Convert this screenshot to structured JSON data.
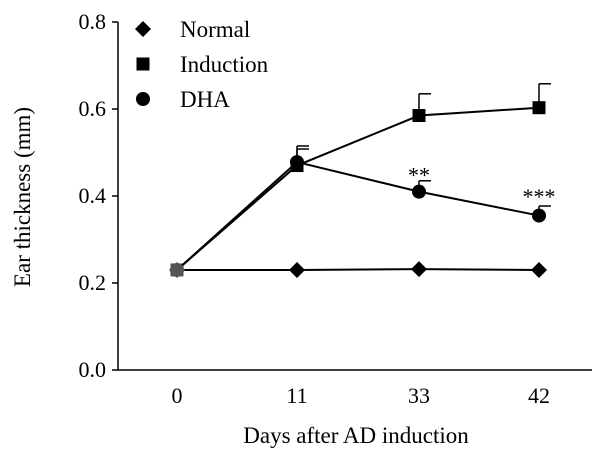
{
  "chart_data": {
    "type": "line",
    "title": "",
    "xlabel": "Days after AD induction",
    "ylabel": "Ear thickness (mm)",
    "x_categories": [
      "0",
      "11",
      "33",
      "42"
    ],
    "ylim": [
      0.0,
      0.8
    ],
    "yticks": [
      "0.0",
      "0.2",
      "0.4",
      "0.6",
      "0.8"
    ],
    "grid": false,
    "legend_position": "top-left",
    "series": [
      {
        "name": "Normal",
        "marker": "diamond",
        "values": [
          0.23,
          0.23,
          0.232,
          0.23
        ],
        "errors": [
          0.0,
          0.0,
          0.0,
          0.0
        ]
      },
      {
        "name": "Induction",
        "marker": "square",
        "values": [
          0.23,
          0.47,
          0.585,
          0.603
        ],
        "errors": [
          0.0,
          0.045,
          0.05,
          0.055
        ]
      },
      {
        "name": "DHA",
        "marker": "circle",
        "values": [
          0.23,
          0.478,
          0.41,
          0.355
        ],
        "errors": [
          0.0,
          0.03,
          0.025,
          0.022
        ]
      }
    ],
    "annotations": [
      {
        "x": "33",
        "text": "**",
        "anchor_y": 0.45
      },
      {
        "x": "42",
        "text": "***",
        "anchor_y": 0.4
      }
    ]
  }
}
